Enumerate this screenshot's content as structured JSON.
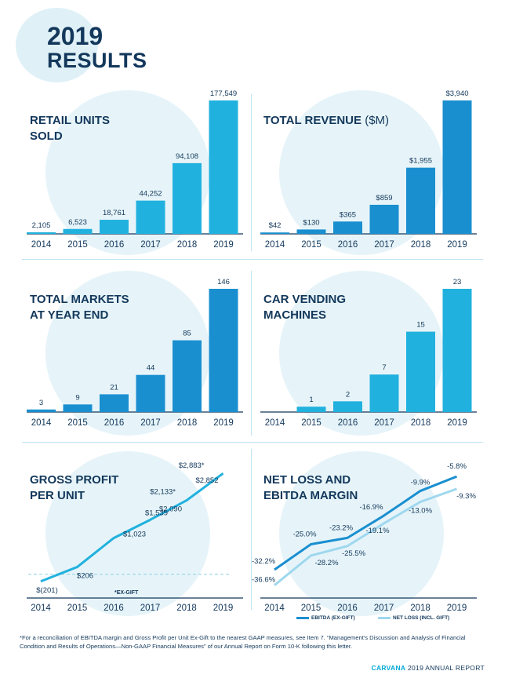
{
  "header": {
    "year": "2019",
    "subtitle": "RESULTS"
  },
  "colors": {
    "navy": "#13385b",
    "light_blue": "#21b1de",
    "dark_blue": "#1a8fd0",
    "pale_blue": "#9fd8ee",
    "circle": "#e6f4f9"
  },
  "chart_data": [
    {
      "id": "retail",
      "type": "bar",
      "title_lines": [
        "RETAIL UNITS",
        "SOLD"
      ],
      "title_unit": "",
      "categories": [
        "2014",
        "2015",
        "2016",
        "2017",
        "2018",
        "2019"
      ],
      "values": [
        2105,
        6523,
        18761,
        44252,
        94108,
        177549
      ],
      "labels": [
        "2,105",
        "6,523",
        "18,761",
        "44,252",
        "94,108",
        "177,549"
      ],
      "ymax": 177549
    },
    {
      "id": "revenue",
      "type": "bar",
      "title_lines": [
        "TOTAL REVENUE"
      ],
      "title_unit": "($M)",
      "categories": [
        "2014",
        "2015",
        "2016",
        "2017",
        "2018",
        "2019"
      ],
      "values": [
        42,
        130,
        365,
        859,
        1955,
        3940
      ],
      "labels": [
        "$42",
        "$130",
        "$365",
        "$859",
        "$1,955",
        "$3,940"
      ],
      "ymax": 3940
    },
    {
      "id": "markets",
      "type": "bar",
      "title_lines": [
        "TOTAL MARKETS",
        "AT YEAR END"
      ],
      "title_unit": "",
      "categories": [
        "2014",
        "2015",
        "2016",
        "2017",
        "2018",
        "2019"
      ],
      "values": [
        3,
        9,
        21,
        44,
        85,
        146
      ],
      "labels": [
        "3",
        "9",
        "21",
        "44",
        "85",
        "146"
      ],
      "ymax": 146
    },
    {
      "id": "vending",
      "type": "bar",
      "title_lines": [
        "CAR VENDING",
        "MACHINES"
      ],
      "title_unit": "",
      "categories": [
        "2014",
        "2015",
        "2016",
        "2017",
        "2018",
        "2019"
      ],
      "values": [
        0,
        1,
        2,
        7,
        15,
        23
      ],
      "labels": [
        "",
        "1",
        "2",
        "7",
        "15",
        "23"
      ],
      "ymax": 23
    },
    {
      "id": "gpu",
      "type": "line",
      "title_lines": [
        "GROSS PROFIT",
        "PER UNIT"
      ],
      "title_unit": "",
      "categories": [
        "2014",
        "2015",
        "2016",
        "2017",
        "2018",
        "2019"
      ],
      "ylim": [
        -450,
        3100
      ],
      "series": [
        {
          "name": "Gross Profit per Unit",
          "values": [
            -201,
            206,
            1023,
            1539,
            2090,
            2852
          ],
          "labels": [
            "$(201)",
            "$206",
            "$1,023",
            "$1,539",
            "$2,090",
            "$2,852"
          ]
        },
        {
          "name": "Ex-Gift",
          "values": [
            null,
            null,
            null,
            null,
            2133,
            2883
          ],
          "labels": [
            "",
            "",
            "",
            "",
            "$2,133*",
            "$2,883*"
          ]
        }
      ],
      "note": "*EX-GIFT"
    },
    {
      "id": "margin",
      "type": "line",
      "title_lines": [
        "NET LOSS AND",
        "EBITDA MARGIN"
      ],
      "title_unit": "",
      "categories": [
        "2014",
        "2015",
        "2016",
        "2017",
        "2018",
        "2019"
      ],
      "ylim": [
        -38,
        -2
      ],
      "series": [
        {
          "name": "EBITDA (EX-GIFT)",
          "values": [
            -32.2,
            -25.0,
            -23.2,
            -16.9,
            -9.9,
            -5.8
          ],
          "labels": [
            "-32.2%",
            "-25.0%",
            "-23.2%",
            "-16.9%",
            "-9.9%",
            "-5.8%"
          ]
        },
        {
          "name": "NET LOSS (INCL. GIFT)",
          "values": [
            -36.6,
            -28.2,
            -25.5,
            -19.1,
            -13.0,
            -9.3
          ],
          "labels": [
            "-36.6%",
            "-28.2%",
            "-25.5%",
            "-19.1%",
            "-13.0%",
            "-9.3%"
          ]
        }
      ]
    }
  ],
  "footnote": "*For a reconciliation of EBITDA margin and Gross Profit per Unit Ex-Gift to the nearest GAAP measures, see Item 7. “Management's Discussion and Analysis of Financial Condition and Results of Operations—Non-GAAP Financial Measures” of our Annual Report on Form 10-K following this letter.",
  "footer": {
    "brand": "CARVANA",
    "text": "2019 ANNUAL REPORT"
  }
}
